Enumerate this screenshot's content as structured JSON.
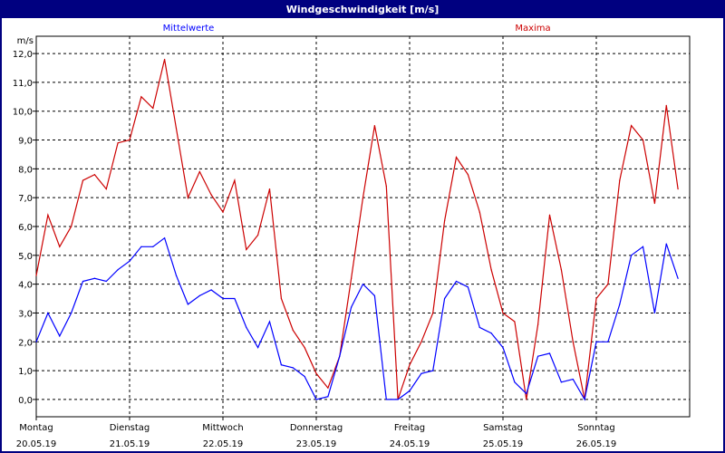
{
  "window": {
    "title": "Windgeschwindigkeit [m/s]"
  },
  "chart_data": {
    "type": "line",
    "title": "Windgeschwindigkeit [m/s]",
    "ylabel": "m/s",
    "xlabel": "",
    "ylim": [
      -0.6,
      12.6
    ],
    "xlim_hours": [
      0,
      168
    ],
    "yticks": [
      0,
      1,
      2,
      3,
      4,
      5,
      6,
      7,
      8,
      9,
      10,
      11,
      12
    ],
    "ytick_labels": [
      "0,0",
      "1,0",
      "2,0",
      "3,0",
      "4,0",
      "5,0",
      "6,0",
      "7,0",
      "8,0",
      "9,0",
      "10,0",
      "11,0",
      "12,0"
    ],
    "grid": true,
    "x_day_labels": [
      {
        "day": "Montag",
        "date": "20.05.19"
      },
      {
        "day": "Dienstag",
        "date": "21.05.19"
      },
      {
        "day": "Mittwoch",
        "date": "22.05.19"
      },
      {
        "day": "Donnerstag",
        "date": "23.05.19"
      },
      {
        "day": "Freitag",
        "date": "24.05.19"
      },
      {
        "day": "Samstag",
        "date": "25.05.19"
      },
      {
        "day": "Sonntag",
        "date": "26.05.19"
      }
    ],
    "x_step_hours": 3,
    "series": [
      {
        "name": "Mittelwerte",
        "color": "#0000ff",
        "values": [
          2.0,
          3.0,
          2.2,
          3.0,
          4.1,
          4.2,
          4.1,
          4.5,
          4.8,
          5.3,
          5.3,
          5.6,
          4.3,
          3.3,
          3.6,
          3.8,
          3.5,
          3.5,
          2.5,
          1.8,
          2.7,
          1.2,
          1.1,
          0.8,
          0.0,
          0.1,
          1.5,
          3.2,
          4.0,
          3.6,
          0.0,
          0.0,
          0.3,
          0.9,
          1.0,
          3.5,
          4.1,
          3.9,
          2.5,
          2.3,
          1.8,
          0.6,
          0.2,
          1.5,
          1.6,
          0.6,
          0.7,
          0.0,
          2.0,
          2.0,
          3.3,
          5.0,
          5.3,
          3.0,
          5.4,
          4.2
        ]
      },
      {
        "name": "Maxima",
        "color": "#cc0000",
        "values": [
          4.3,
          6.4,
          5.3,
          6.0,
          7.6,
          7.8,
          7.3,
          8.9,
          9.0,
          10.5,
          10.1,
          11.8,
          9.4,
          7.0,
          7.9,
          7.1,
          6.5,
          7.6,
          5.2,
          5.7,
          7.3,
          3.5,
          2.4,
          1.8,
          0.9,
          0.4,
          1.5,
          4.2,
          7.0,
          9.5,
          7.4,
          0.0,
          1.2,
          2.0,
          3.0,
          6.2,
          8.4,
          7.8,
          6.5,
          4.5,
          3.0,
          2.7,
          0.0,
          2.6,
          6.4,
          4.5,
          2.0,
          0.0,
          3.5,
          4.0,
          7.6,
          9.5,
          9.0,
          6.8,
          10.2,
          7.3
        ]
      }
    ],
    "legend": "top"
  }
}
